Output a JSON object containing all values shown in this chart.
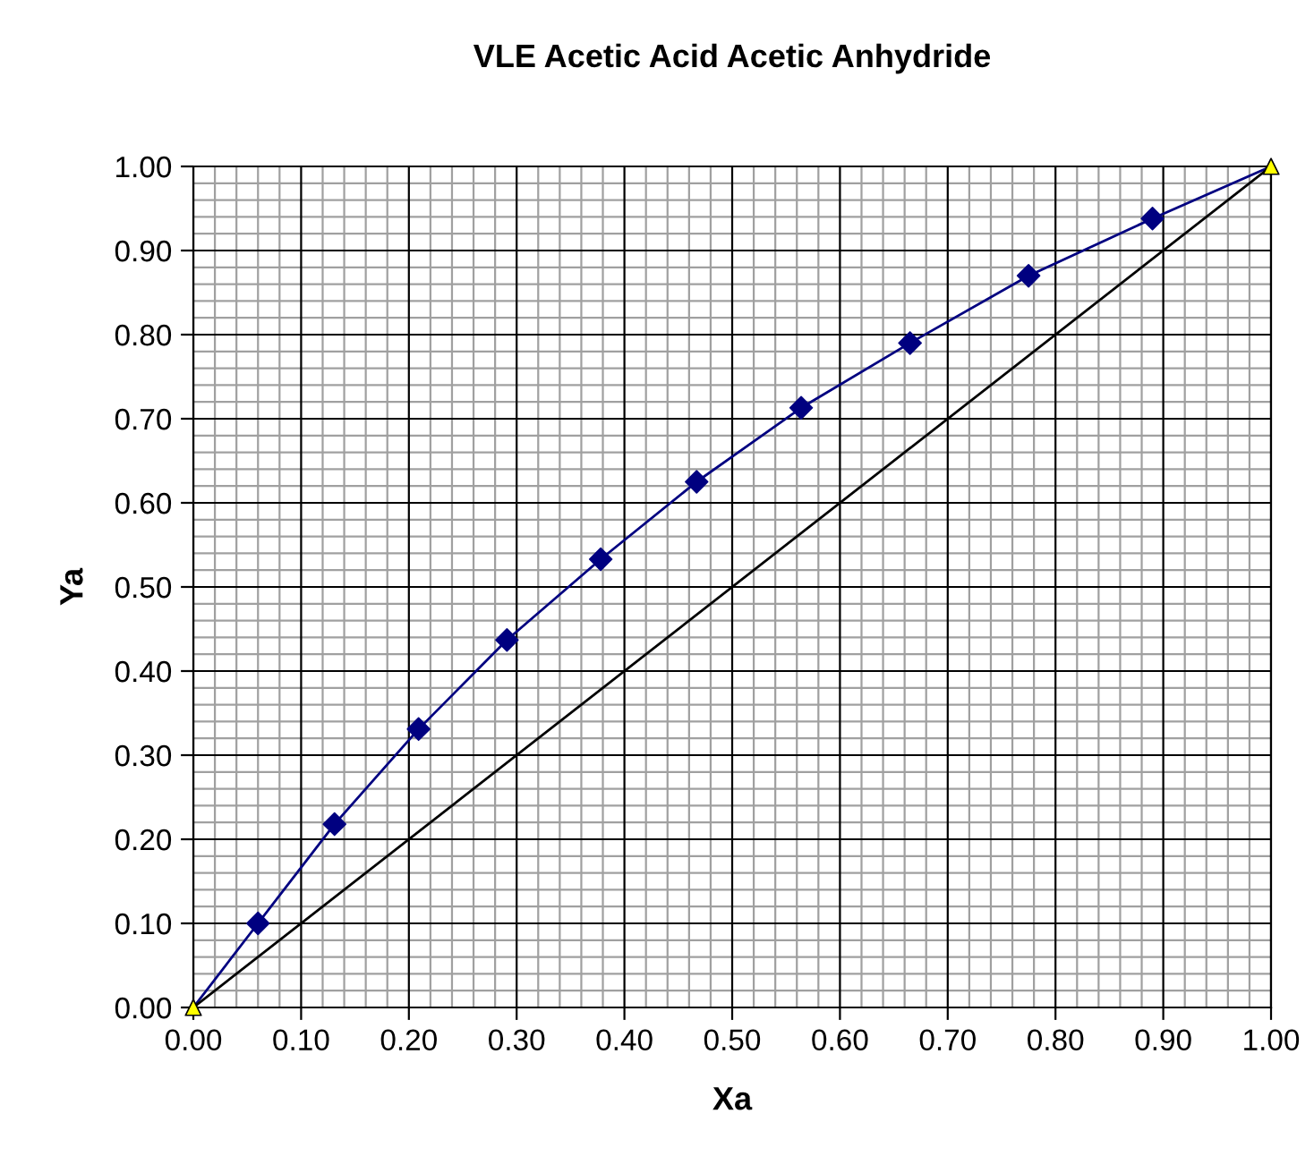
{
  "chart_data": {
    "type": "line",
    "title": "VLE Acetic Acid Acetic Anhydride",
    "xlabel": "Xa",
    "ylabel": "Ya",
    "series": [
      {
        "color": "#000080",
        "marker": "none",
        "x": [
          0,
          0.06,
          0.131,
          0.209,
          0.291,
          0.378,
          0.467,
          0.564,
          0.665,
          0.775,
          0.89,
          1
        ],
        "values": [
          0,
          0.1,
          0.218,
          0.331,
          0.437,
          0.533,
          0.625,
          0.713,
          0.79,
          0.87,
          0.938,
          1
        ]
      },
      {
        "type": "scatter",
        "color": "#000080",
        "marker": "diamond",
        "x": [
          0.06,
          0.131,
          0.209,
          0.291,
          0.378,
          0.467,
          0.564,
          0.665,
          0.775,
          0.89
        ],
        "values": [
          0.1,
          0.218,
          0.331,
          0.437,
          0.533,
          0.625,
          0.713,
          0.79,
          0.87,
          0.938
        ]
      },
      {
        "color": "#000000",
        "marker": "none",
        "x": [
          0,
          1
        ],
        "values": [
          0,
          1
        ]
      },
      {
        "type": "scatter",
        "color": "#ffff00",
        "marker": "triangle",
        "x": [
          0,
          1
        ],
        "values": [
          0,
          1
        ]
      }
    ],
    "xlim": [
      0,
      1
    ],
    "ylim": [
      0,
      1
    ],
    "xticks": [
      {
        "value": 0,
        "label": "0.00"
      },
      {
        "value": 0.1,
        "label": "0.10"
      },
      {
        "value": 0.2,
        "label": "0.20"
      },
      {
        "value": 0.3,
        "label": "0.30"
      },
      {
        "value": 0.4,
        "label": "0.40"
      },
      {
        "value": 0.5,
        "label": "0.50"
      },
      {
        "value": 0.6,
        "label": "0.60"
      },
      {
        "value": 0.7,
        "label": "0.70"
      },
      {
        "value": 0.8,
        "label": "0.80"
      },
      {
        "value": 0.9,
        "label": "0.90"
      },
      {
        "value": 1,
        "label": "1.00"
      }
    ],
    "yticks": [
      {
        "value": 0,
        "label": "0.00"
      },
      {
        "value": 0.1,
        "label": "0.10"
      },
      {
        "value": 0.2,
        "label": "0.20"
      },
      {
        "value": 0.3,
        "label": "0.30"
      },
      {
        "value": 0.4,
        "label": "0.40"
      },
      {
        "value": 0.5,
        "label": "0.50"
      },
      {
        "value": 0.6,
        "label": "0.60"
      },
      {
        "value": 0.7,
        "label": "0.70"
      },
      {
        "value": 0.8,
        "label": "0.80"
      },
      {
        "value": 0.9,
        "label": "0.90"
      },
      {
        "value": 1,
        "label": "1.00"
      }
    ],
    "grid": true,
    "legend": false
  }
}
